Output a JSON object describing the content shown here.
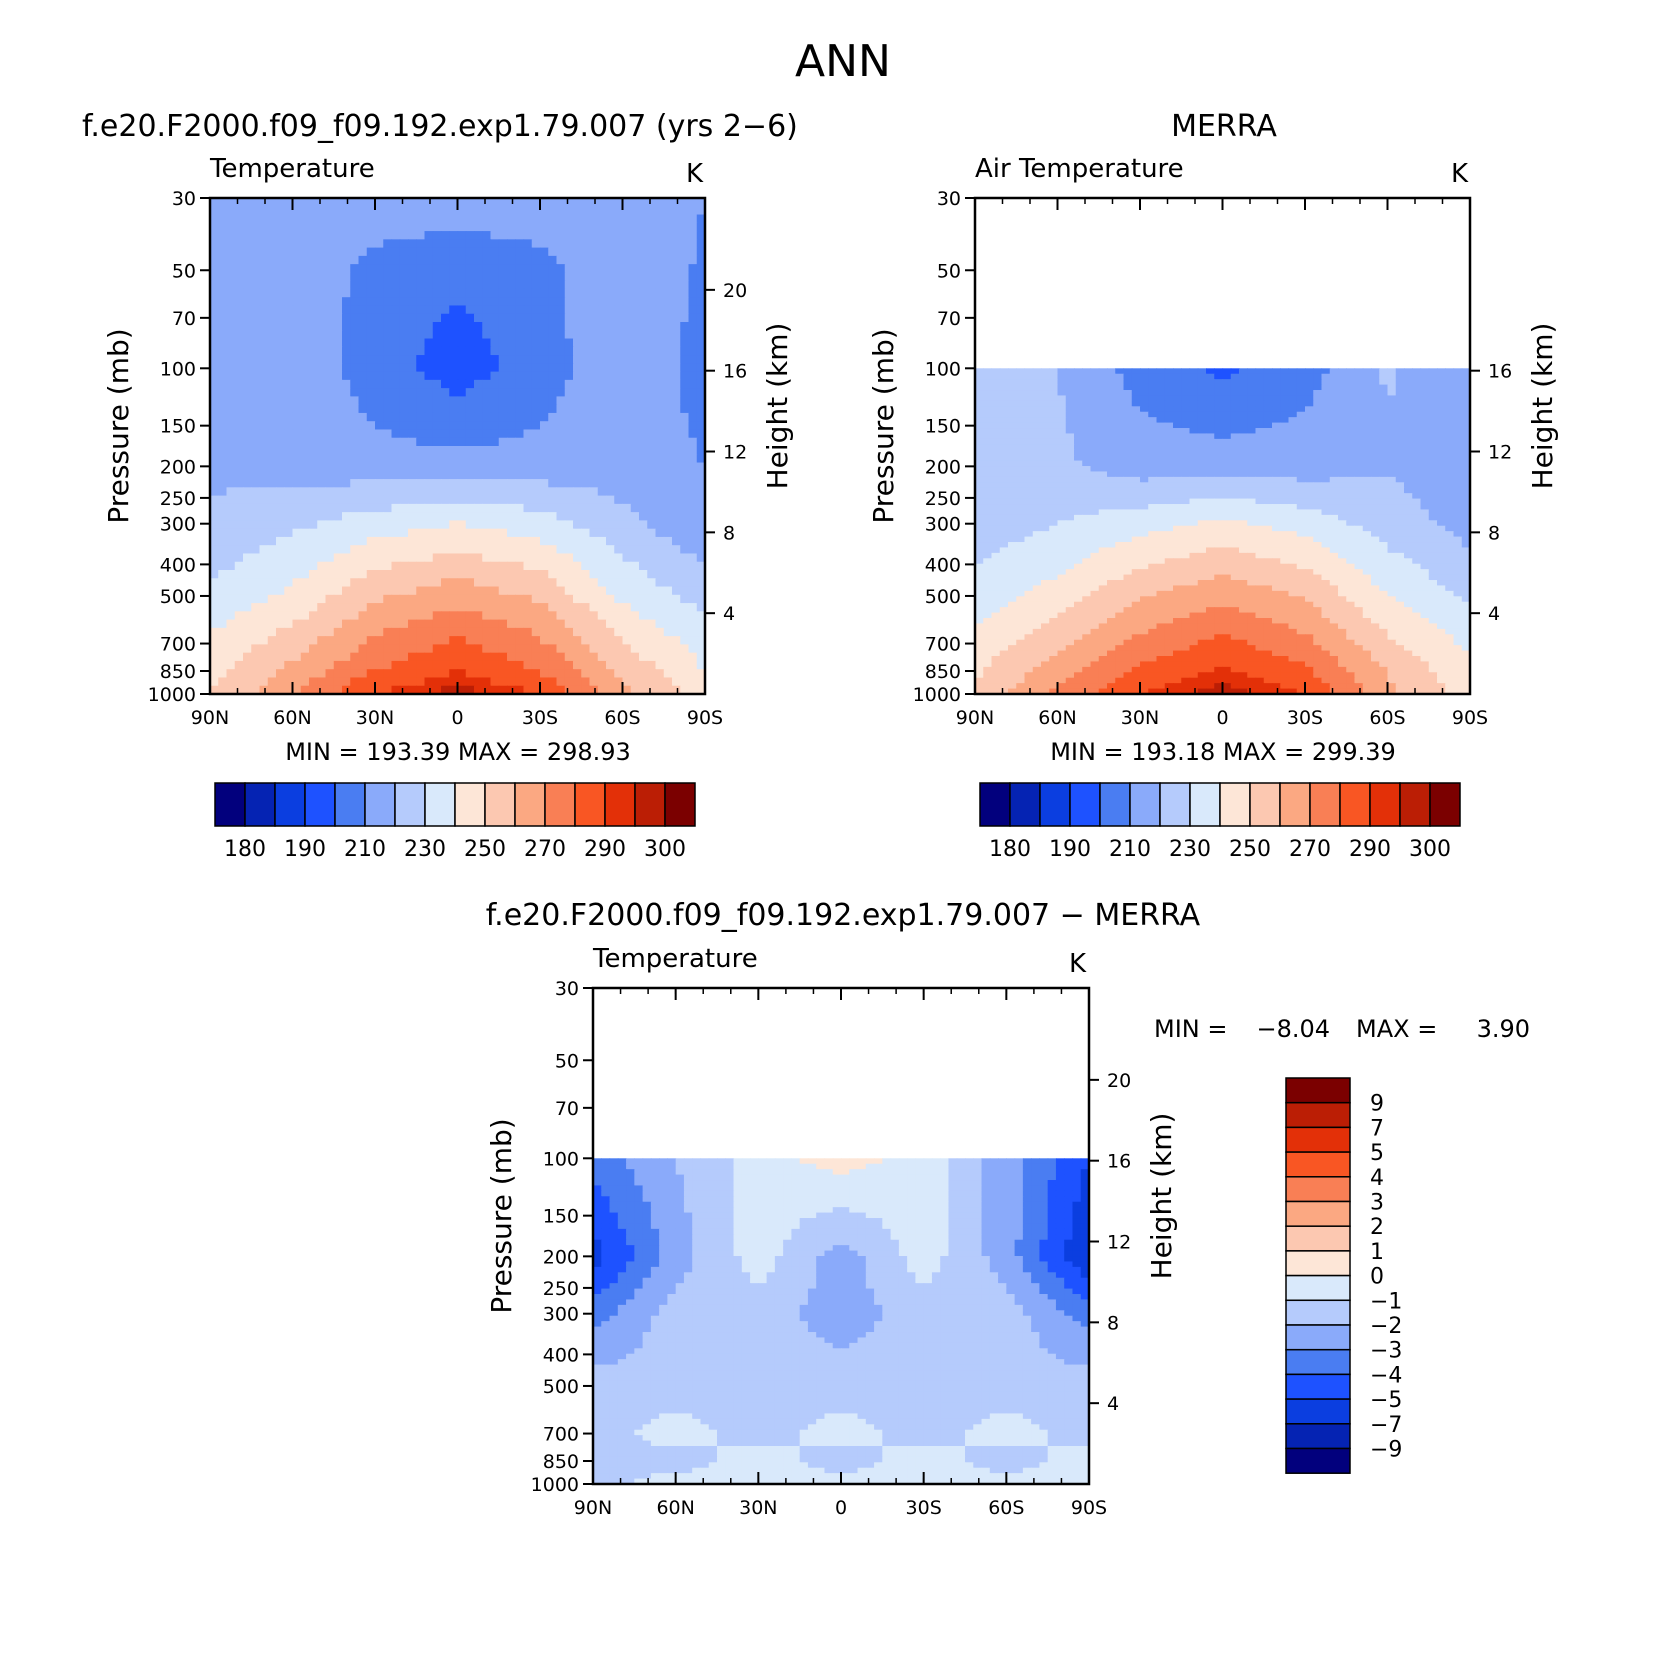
{
  "page": {
    "title": "ANN",
    "colors": {
      "abs_levels": [
        "#02007d",
        "#0523b3",
        "#0b3ee0",
        "#1e52ff",
        "#4a7df2",
        "#8aaafa",
        "#b5cbfc",
        "#d9e9fb",
        "#fde6d7",
        "#fcc8b1",
        "#fba882",
        "#f97f55",
        "#f95623",
        "#e33008",
        "#bb1e05",
        "#7b0000"
      ],
      "diff_levels": [
        "#02007d",
        "#0523b3",
        "#0b3ee0",
        "#1e52ff",
        "#4a7df2",
        "#8aaafa",
        "#b5cbfc",
        "#d9e9fb",
        "#fde6d7",
        "#fcc8b1",
        "#fba882",
        "#f97f55",
        "#f95623",
        "#e33008",
        "#bb1e05",
        "#7b0000"
      ]
    }
  },
  "panels": [
    {
      "heading": "f.e20.F2000.f09_f09.192.exp1.79.007 (yrs 2−6)",
      "variable": "Temperature",
      "units": "K",
      "stats": "MIN = 193.39   MAX = 298.93"
    },
    {
      "heading": "MERRA",
      "variable": "Air Temperature",
      "units": "K",
      "stats": "MIN = 193.18   MAX = 299.39"
    },
    {
      "heading": "f.e20.F2000.f09_f09.192.exp1.79.007 − MERRA",
      "variable": "Temperature",
      "units": "K",
      "stats_min_label": "MIN =",
      "stats_min_value": "−8.04",
      "stats_max_label": "MAX =",
      "stats_max_value": "3.90"
    }
  ],
  "chart_data": [
    {
      "type": "heatmap",
      "title": "f.e20.F2000.f09_f09.192.exp1.79.007 (yrs 2−6)",
      "subtitle": "Temperature",
      "units": "K",
      "xlabel": "",
      "ylabel": "Pressure (mb)",
      "y2label": "Height (km)",
      "x_ticks": [
        "90N",
        "60N",
        "30N",
        "0",
        "30S",
        "60S",
        "90S"
      ],
      "y_ticks": [
        30,
        50,
        70,
        100,
        150,
        200,
        250,
        300,
        400,
        500,
        700,
        850,
        1000
      ],
      "y_scale": "log",
      "y2_ticks": [
        20,
        16,
        12,
        8,
        4
      ],
      "ylim": [
        30,
        1000
      ],
      "lat": [
        90,
        60,
        30,
        0,
        -30,
        -60,
        -90
      ],
      "levels": [
        1000,
        850,
        700,
        500,
        300,
        200,
        100,
        50,
        30
      ],
      "values": [
        [
          250,
          270,
          290,
          298,
          290,
          262,
          245
        ],
        [
          246,
          263,
          280,
          290,
          280,
          258,
          240
        ],
        [
          242,
          255,
          272,
          282,
          272,
          250,
          236
        ],
        [
          232,
          242,
          258,
          266,
          258,
          238,
          226
        ],
        [
          222,
          228,
          235,
          240,
          235,
          223,
          212
        ],
        [
          218,
          216,
          214,
          213,
          214,
          215,
          210
        ],
        [
          220,
          218,
          205,
          195,
          205,
          218,
          206
        ],
        [
          220,
          218,
          206,
          202,
          206,
          220,
          208
        ],
        [
          220,
          220,
          218,
          216,
          218,
          220,
          210
        ]
      ],
      "min": 193.39,
      "max": 298.93
    },
    {
      "type": "heatmap",
      "title": "MERRA",
      "subtitle": "Air Temperature",
      "units": "K",
      "xlabel": "",
      "ylabel": "Pressure (mb)",
      "y2label": "Height (km)",
      "x_ticks": [
        "90N",
        "60N",
        "30N",
        "0",
        "30S",
        "60S",
        "90S"
      ],
      "y_ticks": [
        30,
        50,
        70,
        100,
        150,
        200,
        250,
        300,
        400,
        500,
        700,
        850,
        1000
      ],
      "y_scale": "log",
      "y2_ticks": [
        16,
        12,
        8,
        4
      ],
      "ylim": [
        30,
        1000
      ],
      "lat": [
        90,
        60,
        30,
        0,
        -30,
        -60,
        -90
      ],
      "levels": [
        1000,
        850,
        700,
        500,
        300,
        200,
        100
      ],
      "values": [
        [
          252,
          272,
          290,
          299,
          290,
          262,
          246
        ],
        [
          248,
          265,
          282,
          291,
          282,
          260,
          242
        ],
        [
          244,
          257,
          273,
          283,
          273,
          252,
          238
        ],
        [
          234,
          244,
          259,
          267,
          259,
          240,
          228
        ],
        [
          224,
          230,
          236,
          242,
          236,
          225,
          216
        ],
        [
          222,
          222,
          215,
          215,
          215,
          219,
          214
        ],
        [
          224,
          220,
          206,
          198,
          206,
          221,
          210
        ]
      ],
      "min": 193.18,
      "max": 299.39
    },
    {
      "type": "heatmap",
      "title": "f.e20.F2000.f09_f09.192.exp1.79.007 − MERRA",
      "subtitle": "Temperature",
      "units": "K",
      "xlabel": "",
      "ylabel": "Pressure (mb)",
      "y2label": "Height (km)",
      "x_ticks": [
        "90N",
        "60N",
        "30N",
        "0",
        "30S",
        "60S",
        "90S"
      ],
      "y_ticks": [
        30,
        50,
        70,
        100,
        150,
        200,
        250,
        300,
        400,
        500,
        700,
        850,
        1000
      ],
      "y_scale": "log",
      "y2_ticks": [
        20,
        16,
        12,
        8,
        4
      ],
      "ylim": [
        30,
        1000
      ],
      "lat": [
        90,
        60,
        30,
        0,
        -30,
        -60,
        -90
      ],
      "levels": [
        1000,
        850,
        700,
        500,
        300,
        200,
        100
      ],
      "values": [
        [
          -1.5,
          -0.5,
          -0.5,
          -0.5,
          -0.5,
          -0.5,
          -0.5
        ],
        [
          -1.2,
          -1.5,
          -0.5,
          -1.5,
          -0.5,
          -1.5,
          -0.5
        ],
        [
          -1.5,
          -0.5,
          -1.5,
          -0.5,
          -1.5,
          -0.5,
          -1.5
        ],
        [
          -1.5,
          -1.5,
          -1.5,
          -1.5,
          -1.5,
          -1.5,
          -1.5
        ],
        [
          -3.5,
          -1.5,
          -1.5,
          -2.5,
          -1.5,
          -1.5,
          -3.5
        ],
        [
          -5.5,
          -2.5,
          -0.5,
          -2.5,
          -0.5,
          -2.5,
          -6.0
        ],
        [
          -3.5,
          -2.0,
          -0.5,
          0.5,
          -0.5,
          -2.5,
          -5.0
        ]
      ],
      "legend_ticks": [
        9,
        7,
        5,
        4,
        3,
        2,
        1,
        0,
        -1,
        -2,
        -3,
        -4,
        -5,
        -7,
        -9
      ],
      "min": -8.04,
      "max": 3.9
    }
  ],
  "colorbars": {
    "abs_labels": [
      "180",
      "190",
      "210",
      "230",
      "250",
      "270",
      "290",
      "300"
    ],
    "diff_labels": [
      "9",
      "7",
      "5",
      "4",
      "3",
      "2",
      "1",
      "0",
      "−1",
      "−2",
      "−3",
      "−4",
      "−5",
      "−7",
      "−9"
    ]
  }
}
